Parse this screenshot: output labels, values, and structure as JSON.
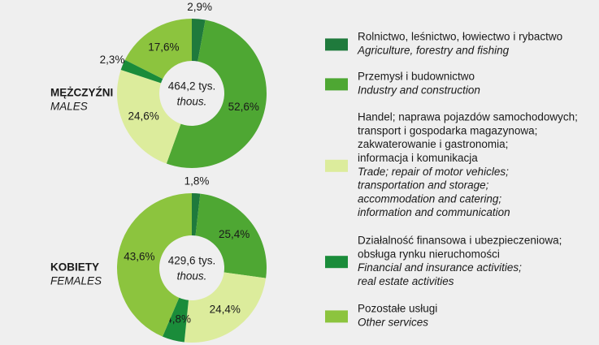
{
  "legend": [
    {
      "name": [
        "Rolnictwo, leśnictwo, łowiectwo i rybactwo"
      ],
      "name_en": [
        "Agriculture, forestry and fishing"
      ],
      "color": "#1f7a3c"
    },
    {
      "name": [
        "Przemysł i budownictwo"
      ],
      "name_en": [
        "Industry and construction"
      ],
      "color": "#4ea733"
    },
    {
      "name": [
        "Handel; naprawa pojazdów samochodowych;",
        "transport i gospodarka magazynowa;",
        "zakwaterowanie i gastronomia;",
        "informacja i komunikacja"
      ],
      "name_en": [
        "Trade; repair of motor vehicles;",
        "transportation and storage;",
        "accommodation and catering;",
        "information and communication"
      ],
      "color": "#dcec9c"
    },
    {
      "name": [
        "Działalność finansowa i ubezpieczeniowa;",
        "obsługa rynku nieruchomości"
      ],
      "name_en": [
        "Financial and insurance activities;",
        "real estate activities"
      ],
      "color": "#1a8c3a"
    },
    {
      "name": [
        "Pozostałe usługi"
      ],
      "name_en": [
        "Other services"
      ],
      "color": "#8cc43e"
    }
  ],
  "chart_data": [
    {
      "type": "pie",
      "title": "MĘŻCZYŹNI",
      "subtitle": "MALES",
      "center_label": "464,2 tys.",
      "center_label_en": "thous.",
      "values": [
        2.9,
        52.6,
        24.6,
        2.3,
        17.6
      ],
      "value_labels": [
        "2,9%",
        "52,6%",
        "24,6%",
        "2,3%",
        "17,6%"
      ]
    },
    {
      "type": "pie",
      "title": "KOBIETY",
      "subtitle": "FEMALES",
      "center_label": "429,6 tys.",
      "center_label_en": "thous.",
      "values": [
        1.8,
        25.4,
        24.4,
        4.8,
        43.6
      ],
      "value_labels": [
        "1,8%",
        "25,4%",
        "24,4%",
        "4,8%",
        "43,6%"
      ]
    }
  ]
}
